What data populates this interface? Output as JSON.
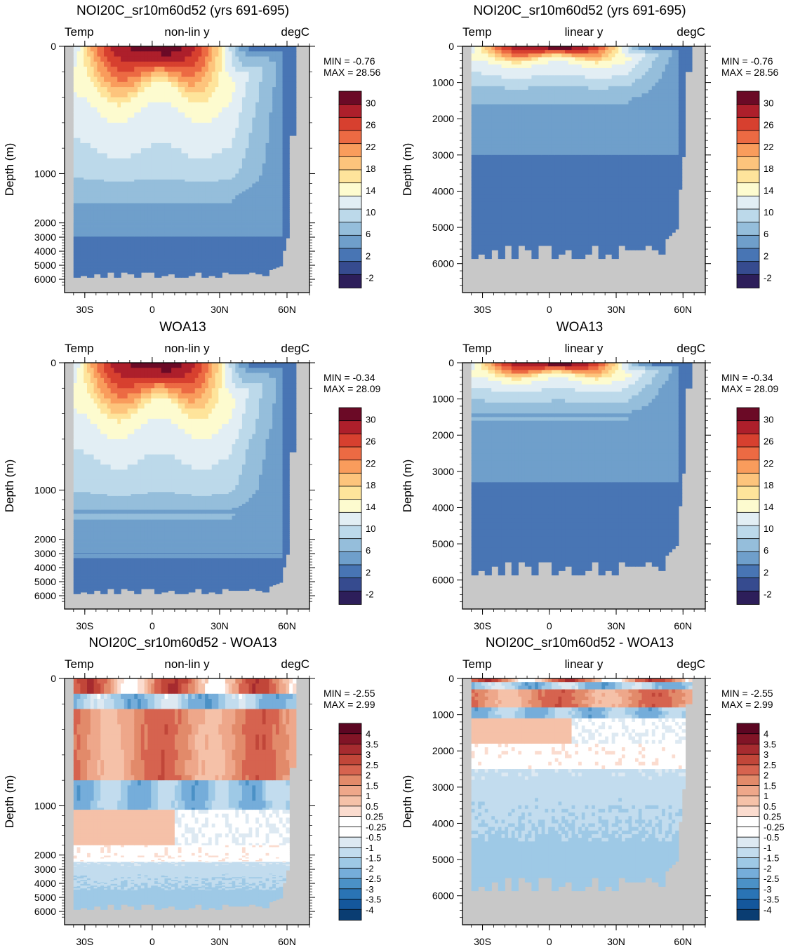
{
  "palettes": {
    "temp": [
      "#2d1e5a",
      "#364b8f",
      "#4875b4",
      "#6f9fcb",
      "#95bedb",
      "#bcd9ea",
      "#e2eef4",
      "#fdfbcf",
      "#fee49b",
      "#fdc47c",
      "#f99c5c",
      "#ec6a43",
      "#d7402f",
      "#ad1f2b",
      "#6b0a26"
    ],
    "temp_levels": [
      "-2",
      "2",
      "6",
      "10",
      "14",
      "18",
      "22",
      "26",
      "30"
    ],
    "diff": [
      "#0a3d72",
      "#14579c",
      "#2a74b5",
      "#4b91c6",
      "#75adda",
      "#9ec9e6",
      "#c2dcee",
      "#dde9f2",
      "#ffffff",
      "#ffffff",
      "#fbdccf",
      "#f5c1a8",
      "#eea78a",
      "#e28a6a",
      "#d6634f",
      "#c14639",
      "#a62b2f",
      "#811426",
      "#5c0622"
    ],
    "diff_levels": [
      "4",
      "3.5",
      "3",
      "2.5",
      "2",
      "1.5",
      "1",
      "0.5",
      "0.25",
      "-0.25",
      "-0.5",
      "-1",
      "-1.5",
      "-2",
      "-2.5",
      "-3",
      "-3.5",
      "-4"
    ],
    "land": "#c8c8c8"
  },
  "panels": [
    {
      "title": "NOI20C_sr10m60d52 (yrs 691-695)",
      "left": "Temp",
      "center": "non-lin y",
      "right": "degC",
      "ylabel": "Depth (m)",
      "min": "MIN =  -0.76",
      "max": "MAX =  28.56",
      "field": "model",
      "scale": "nonlin",
      "cbar": "temp"
    },
    {
      "title": "NOI20C_sr10m60d52 (yrs 691-695)",
      "left": "Temp",
      "center": "linear y",
      "right": "degC",
      "ylabel": "Depth (m)",
      "min": "MIN =  -0.76",
      "max": "MAX =  28.56",
      "field": "model",
      "scale": "linear",
      "cbar": "temp"
    },
    {
      "title": "WOA13",
      "left": "Temp",
      "center": "non-lin y",
      "right": "degC",
      "ylabel": "Depth (m)",
      "min": "MIN =  -0.34",
      "max": "MAX =  28.09",
      "field": "obs",
      "scale": "nonlin",
      "cbar": "temp"
    },
    {
      "title": "WOA13",
      "left": "Temp",
      "center": "linear y",
      "right": "degC",
      "ylabel": "Depth (m)",
      "min": "MIN =  -0.34",
      "max": "MAX =  28.09",
      "field": "obs",
      "scale": "linear",
      "cbar": "temp"
    },
    {
      "title": "NOI20C_sr10m60d52 - WOA13",
      "left": "Temp",
      "center": "non-lin y",
      "right": "degC",
      "ylabel": "Depth (m)",
      "min": "MIN =  -2.55",
      "max": "MAX =  2.99",
      "field": "diff",
      "scale": "nonlin",
      "cbar": "diff"
    },
    {
      "title": "NOI20C_sr10m60d52 - WOA13",
      "left": "Temp",
      "center": "linear y",
      "right": "degC",
      "ylabel": "Depth (m)",
      "min": "MIN =  -2.55",
      "max": "MAX =  2.99",
      "field": "diff",
      "scale": "linear",
      "cbar": "diff"
    }
  ],
  "axes": {
    "xticks": [
      {
        "v": -30,
        "label": "30S"
      },
      {
        "v": 0,
        "label": "0"
      },
      {
        "v": 30,
        "label": "30N"
      },
      {
        "v": 60,
        "label": "60N"
      }
    ],
    "xlim": [
      -39,
      70
    ],
    "nonlin_yticks": [
      "0",
      "1000",
      "2000",
      "3000",
      "4000",
      "5000",
      "6000"
    ],
    "linear_yticks": [
      "0",
      "1000",
      "2000",
      "3000",
      "4000",
      "5000",
      "6000"
    ],
    "linear_ylim": [
      0,
      6800
    ]
  },
  "chart_data": [
    {
      "type": "heatmap",
      "title": "NOI20C_sr10m60d52 (yrs 691-695)",
      "subtitle": "Temp  non-lin y  degC",
      "ylabel": "Depth (m)",
      "x_range": [
        -39,
        70
      ],
      "y_range": [
        0,
        6500
      ],
      "value_range": [
        -0.76,
        28.56
      ],
      "contour_levels": [
        -2,
        0,
        2,
        4,
        6,
        8,
        10,
        12,
        14,
        16,
        18,
        20,
        22,
        24,
        26,
        28,
        30
      ]
    },
    {
      "type": "heatmap",
      "title": "NOI20C_sr10m60d52 (yrs 691-695)",
      "subtitle": "Temp  linear y  degC",
      "ylabel": "Depth (m)",
      "x_range": [
        -39,
        70
      ],
      "y_range": [
        0,
        6800
      ],
      "value_range": [
        -0.76,
        28.56
      ],
      "contour_levels": [
        -2,
        0,
        2,
        4,
        6,
        8,
        10,
        12,
        14,
        16,
        18,
        20,
        22,
        24,
        26,
        28,
        30
      ]
    },
    {
      "type": "heatmap",
      "title": "WOA13",
      "subtitle": "Temp  non-lin y  degC",
      "ylabel": "Depth (m)",
      "x_range": [
        -39,
        70
      ],
      "y_range": [
        0,
        6500
      ],
      "value_range": [
        -0.34,
        28.09
      ],
      "contour_levels": [
        -2,
        0,
        2,
        4,
        6,
        8,
        10,
        12,
        14,
        16,
        18,
        20,
        22,
        24,
        26,
        28,
        30
      ]
    },
    {
      "type": "heatmap",
      "title": "WOA13",
      "subtitle": "Temp  linear y  degC",
      "ylabel": "Depth (m)",
      "x_range": [
        -39,
        70
      ],
      "y_range": [
        0,
        6800
      ],
      "value_range": [
        -0.34,
        28.09
      ],
      "contour_levels": [
        -2,
        0,
        2,
        4,
        6,
        8,
        10,
        12,
        14,
        16,
        18,
        20,
        22,
        24,
        26,
        28,
        30
      ]
    },
    {
      "type": "heatmap",
      "title": "NOI20C_sr10m60d52 - WOA13",
      "subtitle": "Temp  non-lin y  degC",
      "ylabel": "Depth (m)",
      "x_range": [
        -39,
        70
      ],
      "y_range": [
        0,
        6500
      ],
      "value_range": [
        -2.55,
        2.99
      ],
      "contour_levels": [
        -4,
        -3.5,
        -3,
        -2.5,
        -2,
        -1.5,
        -1,
        -0.5,
        -0.25,
        0.25,
        0.5,
        1,
        1.5,
        2,
        2.5,
        3,
        3.5,
        4
      ]
    },
    {
      "type": "heatmap",
      "title": "NOI20C_sr10m60d52 - WOA13",
      "subtitle": "Temp  linear y  degC",
      "ylabel": "Depth (m)",
      "x_range": [
        -39,
        70
      ],
      "y_range": [
        0,
        6800
      ],
      "value_range": [
        -2.55,
        2.99
      ],
      "contour_levels": [
        -4,
        -3.5,
        -3,
        -2.5,
        -2,
        -1.5,
        -1,
        -0.5,
        -0.25,
        0.25,
        0.5,
        1,
        1.5,
        2,
        2.5,
        3,
        3.5,
        4
      ]
    }
  ]
}
